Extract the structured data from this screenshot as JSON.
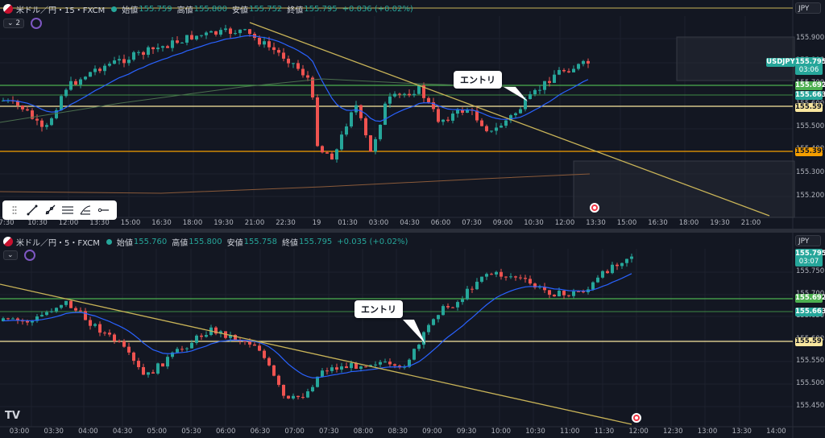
{
  "top": {
    "symbol": "米ドル／円・15・FXCM",
    "open_label": "始値",
    "open": "155.759",
    "high_label": "高値",
    "high": "155.800",
    "low_label": "安値",
    "low": "155.752",
    "close_label": "終値",
    "close": "155.795",
    "change": "+0.036 (+0.02%)",
    "indicator_count": "2",
    "currency": "JPY",
    "price_axis": [
      "155.900",
      "155.800",
      "155.700",
      "155.600",
      "155.500",
      "155.400",
      "155.300",
      "155.200"
    ],
    "time_axis": [
      "7:30",
      "10:30",
      "12:00",
      "13:30",
      "15:00",
      "16:30",
      "18:00",
      "19:30",
      "21:00",
      "22:30",
      "19",
      "01:30",
      "03:00",
      "04:30",
      "06:00",
      "07:30",
      "09:00",
      "10:30",
      "12:00",
      "13:30",
      "15:00",
      "16:30",
      "18:00",
      "19:30",
      "21:00"
    ],
    "last_price": {
      "label": "USDJPY",
      "price": "155.795",
      "countdown": "03:06"
    },
    "levels": [
      "155.692",
      "155.663",
      "155.597",
      "155.399"
    ],
    "callout": "エントリ"
  },
  "bottom": {
    "symbol": "米ドル／円・5・FXCM",
    "open_label": "始値",
    "open": "155.760",
    "high_label": "高値",
    "high": "155.800",
    "low_label": "安値",
    "low": "155.758",
    "close_label": "終値",
    "close": "155.795",
    "change": "+0.035 (+0.02%)",
    "currency": "JPY",
    "price_axis": [
      "155.750",
      "155.700",
      "155.650",
      "155.600",
      "155.550",
      "155.500",
      "155.450"
    ],
    "time_axis": [
      "03:00",
      "03:30",
      "04:00",
      "04:30",
      "05:00",
      "05:30",
      "06:00",
      "06:30",
      "07:00",
      "07:30",
      "08:00",
      "08:30",
      "09:00",
      "09:30",
      "10:00",
      "10:30",
      "11:00",
      "11:30",
      "12:00",
      "12:30",
      "13:00",
      "13:30",
      "14:00"
    ],
    "last_price": {
      "price": "155.795",
      "countdown": "03:07"
    },
    "levels": [
      "155.692",
      "155.663",
      "155.597"
    ],
    "callout": "エントリ",
    "logo": "TV"
  },
  "colors": {
    "bull": "#26a69a",
    "bear": "#ef5350",
    "ma": "#2962ff",
    "trendline": "#c9b458",
    "level": "#f9e79f"
  },
  "icons": [
    "trendline-icon",
    "ray-icon",
    "fib-icon",
    "pitchfork-icon",
    "horizontal-ray-icon"
  ]
}
